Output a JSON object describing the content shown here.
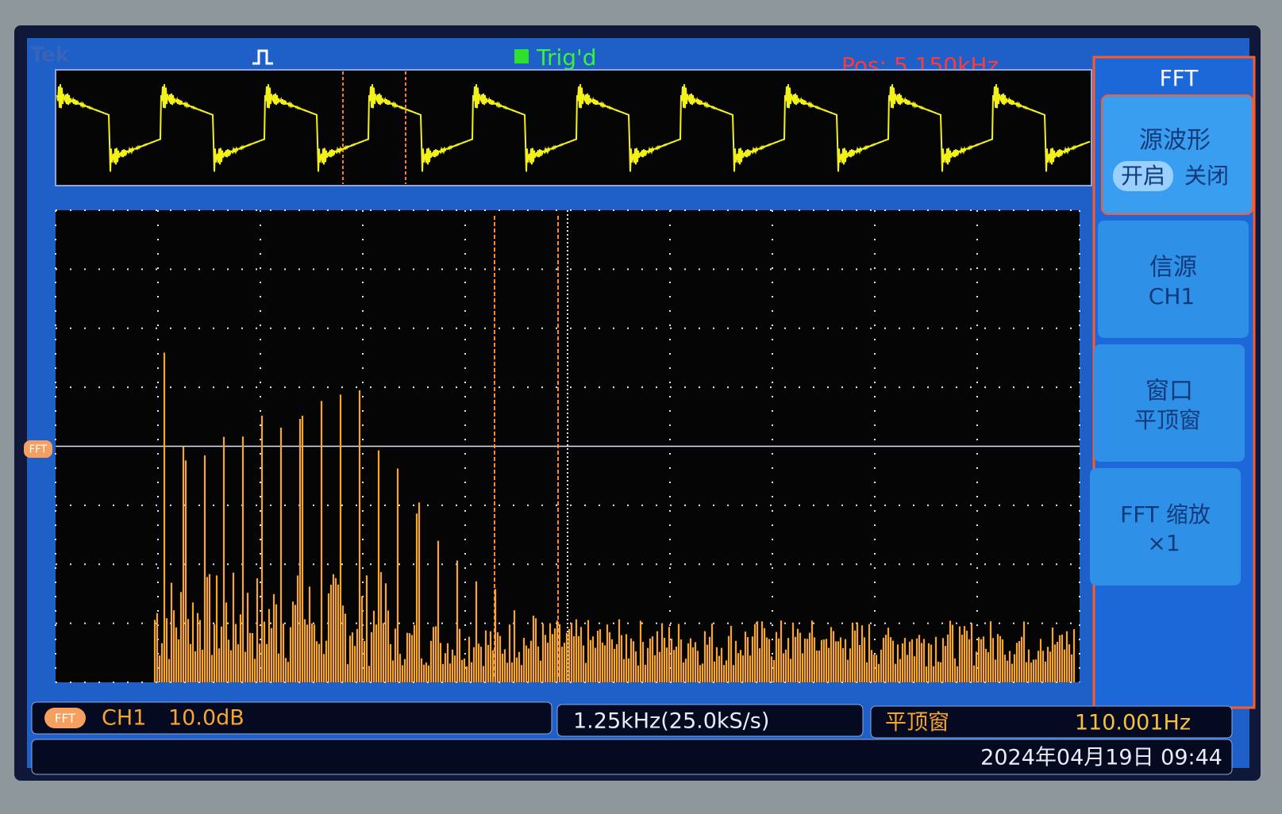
{
  "header": {
    "brand": "Tek",
    "trigger": "Trig'd",
    "position": "Pos: 5.150kHz"
  },
  "menu": {
    "title": "FFT",
    "items": [
      {
        "label": "源波形",
        "options": [
          "开启",
          "关闭"
        ]
      },
      {
        "label": "信源",
        "value": "CH1"
      },
      {
        "label": "窗口",
        "value": "平顶窗"
      },
      {
        "label": "FFT 缩放",
        "value": "×1"
      }
    ]
  },
  "display": {
    "marker": "FFT"
  },
  "status": {
    "badge": "FFT",
    "channel": "CH1",
    "scale": "10.0dB",
    "span": "1.25kHz(25.0kS/s)",
    "window": "平顶窗",
    "frequency": "110.001Hz",
    "datetime": "2024年04月19日 09:44"
  }
}
